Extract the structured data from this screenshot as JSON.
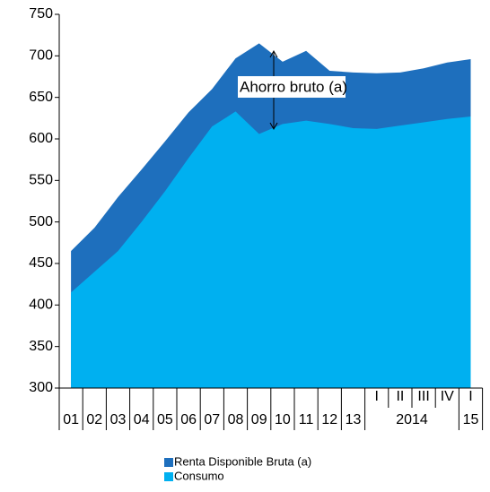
{
  "chart_data": {
    "type": "area",
    "categories": [
      "01",
      "02",
      "03",
      "04",
      "05",
      "06",
      "07",
      "08",
      "09",
      "10",
      "11",
      "12",
      "13",
      "I",
      "II",
      "III",
      "IV",
      "I"
    ],
    "category_groups": [
      {
        "label": "2014",
        "start": 13,
        "end": 16
      },
      {
        "label": "15",
        "start": 17,
        "end": 17
      }
    ],
    "series": [
      {
        "name": "Renta Disponible Bruta (a)",
        "color": "#1e6fbd",
        "values": [
          465,
          493,
          530,
          563,
          597,
          632,
          660,
          697,
          715,
          693,
          706,
          682,
          680,
          679,
          680,
          685,
          692,
          696
        ]
      },
      {
        "name": "Consumo",
        "color": "#00b0f0",
        "values": [
          415,
          440,
          465,
          500,
          537,
          577,
          615,
          633,
          606,
          618,
          622,
          618,
          613,
          612,
          616,
          620,
          624,
          627
        ]
      }
    ],
    "annotation": "Ahorro bruto (a)",
    "ylim": [
      300,
      750
    ],
    "yticks": [
      300,
      350,
      400,
      450,
      500,
      550,
      600,
      650,
      700,
      750
    ]
  }
}
